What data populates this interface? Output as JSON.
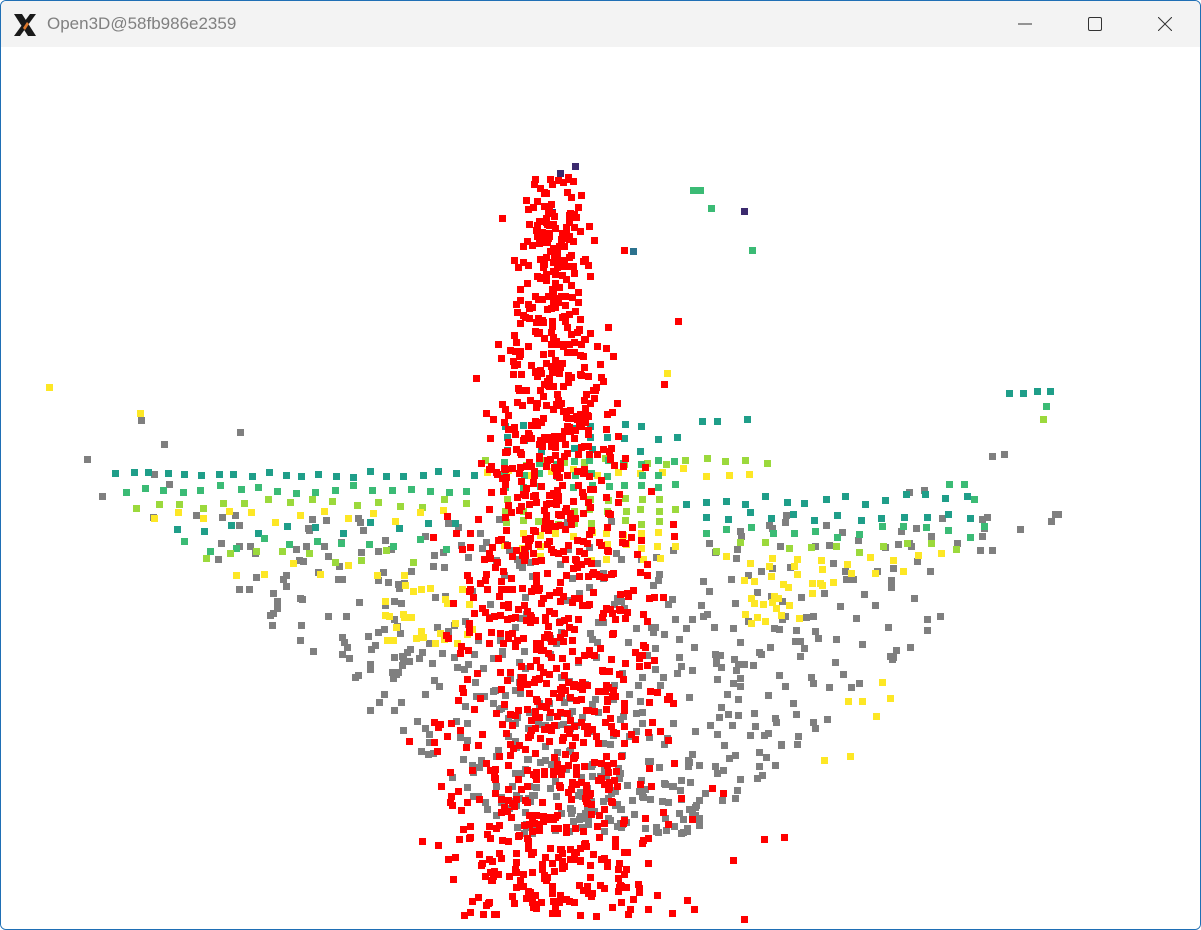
{
  "window": {
    "title": "Open3D@58fb986e2359"
  },
  "icons": {
    "app": "x11-app-icon",
    "minimize": "minimize-icon",
    "maximize": "maximize-icon",
    "close": "close-icon"
  },
  "colors": {
    "red": "#ff0000",
    "gray": "#7f7f7f",
    "yellow": "#fde725",
    "lime": "#9bd93c",
    "green": "#3bbb75",
    "teal": "#1f9e89",
    "blue": "#2c728e",
    "purple": "#3b2a6e"
  }
}
